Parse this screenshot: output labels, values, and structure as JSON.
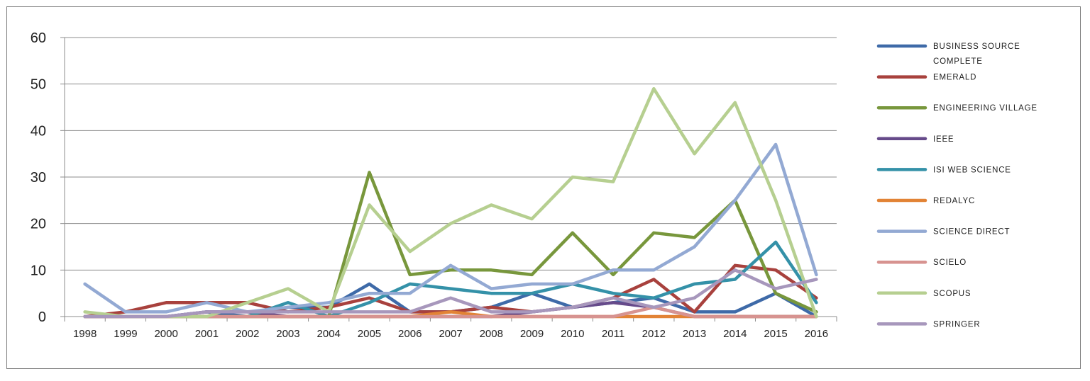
{
  "chart_data": {
    "type": "line",
    "x": [
      "1998",
      "1999",
      "2000",
      "2001",
      "2002",
      "2003",
      "2004",
      "2005",
      "2006",
      "2007",
      "2008",
      "2009",
      "2010",
      "2011",
      "2012",
      "2013",
      "2014",
      "2015",
      "2016"
    ],
    "ylim": [
      0,
      60
    ],
    "yticks": [
      "0",
      "10",
      "20",
      "30",
      "40",
      "50",
      "60"
    ],
    "grid": true,
    "legend_position": "right",
    "series": [
      {
        "name": "BUSINESS SOURCE COMPLETE",
        "color": "#3e6aa8",
        "values": [
          0,
          0,
          0,
          1,
          0,
          2,
          2,
          7,
          1,
          1,
          2,
          5,
          2,
          3,
          4,
          1,
          1,
          5,
          0
        ]
      },
      {
        "name": "EMERALD",
        "color": "#a8413d",
        "values": [
          0,
          1,
          3,
          3,
          3,
          1,
          2,
          4,
          1,
          1,
          2,
          1,
          2,
          4,
          8,
          1,
          11,
          10,
          4
        ]
      },
      {
        "name": "ENGINEERING VILLAGE",
        "color": "#78973c",
        "values": [
          0,
          0,
          0,
          0,
          0,
          0,
          0,
          31,
          9,
          10,
          10,
          9,
          18,
          9,
          18,
          17,
          25,
          5,
          1
        ]
      },
      {
        "name": "IEEE",
        "color": "#664a8a",
        "values": [
          0,
          0,
          0,
          1,
          1,
          0,
          0,
          0,
          0,
          0,
          0,
          1,
          2,
          3,
          2,
          0,
          0,
          0,
          0
        ]
      },
      {
        "name": "ISI WEB SCIENCE",
        "color": "#3491a8",
        "values": [
          0,
          0,
          0,
          0,
          0,
          3,
          0,
          3,
          7,
          6,
          5,
          5,
          7,
          5,
          4,
          7,
          8,
          16,
          3
        ]
      },
      {
        "name": "REDALYC",
        "color": "#e28335",
        "values": [
          0,
          0,
          0,
          0,
          0,
          0,
          0,
          0,
          0,
          1,
          0,
          0,
          0,
          0,
          0,
          0,
          0,
          0,
          0
        ]
      },
      {
        "name": "SCIENCE DIRECT",
        "color": "#93a9d3",
        "values": [
          7,
          1,
          1,
          3,
          1,
          2,
          3,
          5,
          5,
          11,
          6,
          7,
          7,
          10,
          10,
          15,
          25,
          37,
          9
        ]
      },
      {
        "name": "SCIELO",
        "color": "#d79390",
        "values": [
          0,
          0,
          0,
          0,
          0,
          0,
          0,
          0,
          0,
          0,
          0,
          0,
          0,
          0,
          2,
          0,
          0,
          0,
          0
        ]
      },
      {
        "name": "SCOPUS",
        "color": "#b6cf90",
        "values": [
          1,
          0,
          0,
          0,
          3,
          6,
          1,
          24,
          14,
          20,
          24,
          21,
          30,
          29,
          49,
          35,
          46,
          25,
          0
        ]
      },
      {
        "name": "SPRINGER",
        "color": "#a797bc",
        "values": [
          0,
          0,
          0,
          1,
          1,
          1,
          1,
          1,
          1,
          4,
          1,
          1,
          2,
          4,
          2,
          4,
          10,
          6,
          8
        ]
      }
    ]
  }
}
